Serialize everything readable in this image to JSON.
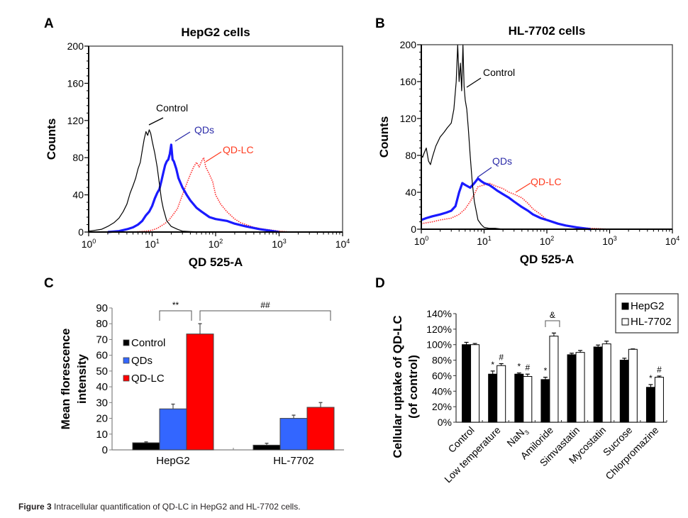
{
  "caption": {
    "label": "Figure 3",
    "text": " Intracellular quantification of QD-LC in HepG2 and HL-7702 cells."
  },
  "colors": {
    "control": "#000000",
    "qds": "#1a1aff",
    "qdlc": "#ff2a2a",
    "bar_control": "#000000",
    "bar_qds": "#3366ff",
    "bar_qdlc": "#ff0000",
    "annot_qds": "#2b2ba8",
    "annot_qdlc": "#ff3b1f"
  },
  "chart_data": [
    {
      "panel": "A",
      "type": "line",
      "title": "HepG2 cells",
      "xlabel": "QD 525-A",
      "ylabel": "Counts",
      "xscale": "log",
      "xlim": [
        1,
        10000
      ],
      "ylim": [
        0,
        200
      ],
      "xticks": [
        1,
        10,
        100,
        1000,
        10000
      ],
      "xtick_labels": [
        {
          "base": "10",
          "exp": "0"
        },
        {
          "base": "10",
          "exp": "1"
        },
        {
          "base": "10",
          "exp": "2"
        },
        {
          "base": "10",
          "exp": "3"
        },
        {
          "base": "10",
          "exp": "4"
        }
      ],
      "yticks": [
        0,
        40,
        80,
        120,
        160,
        200
      ],
      "series": [
        {
          "name": "Control",
          "style": "thin-solid",
          "annotation": "Control",
          "x": [
            1,
            1.3,
            1.6,
            2,
            2.5,
            3,
            3.5,
            4,
            4.5,
            5,
            5.5,
            6,
            6.5,
            7,
            7.5,
            8,
            8.5,
            9,
            9.5,
            10,
            11,
            12,
            13,
            14,
            15,
            17,
            20,
            25,
            30,
            40,
            60,
            100
          ],
          "y": [
            1,
            2,
            3,
            6,
            10,
            15,
            22,
            30,
            42,
            50,
            58,
            68,
            75,
            88,
            100,
            108,
            104,
            110,
            106,
            98,
            85,
            70,
            52,
            35,
            25,
            12,
            6,
            3,
            1,
            0.5,
            0,
            0
          ]
        },
        {
          "name": "QDs",
          "style": "thick-solid",
          "annotation": "QDs",
          "x": [
            2,
            3,
            4,
            5,
            6,
            7,
            8,
            9,
            10,
            11,
            12,
            13,
            14,
            15,
            16,
            17,
            18,
            19,
            20,
            21,
            22,
            24,
            26,
            30,
            35,
            40,
            50,
            60,
            80,
            100,
            150,
            200,
            300,
            500,
            800,
            1000
          ],
          "y": [
            0,
            1,
            3,
            5,
            8,
            12,
            18,
            22,
            28,
            36,
            42,
            46,
            55,
            64,
            72,
            76,
            78,
            84,
            94,
            78,
            76,
            68,
            58,
            48,
            40,
            34,
            26,
            22,
            16,
            14,
            12,
            9,
            6,
            3,
            1,
            0
          ]
        },
        {
          "name": "QD-LC",
          "style": "dotted",
          "annotation": "QD-LC",
          "x": [
            5,
            8,
            10,
            12,
            15,
            18,
            20,
            25,
            30,
            35,
            40,
            45,
            50,
            55,
            60,
            65,
            70,
            80,
            90,
            100,
            120,
            150,
            200,
            250,
            300,
            400,
            600,
            1000,
            1500
          ],
          "y": [
            0,
            1,
            2,
            4,
            8,
            12,
            16,
            25,
            40,
            52,
            62,
            70,
            75,
            70,
            76,
            80,
            70,
            62,
            54,
            40,
            30,
            22,
            14,
            10,
            8,
            5,
            3,
            1,
            0
          ]
        }
      ]
    },
    {
      "panel": "B",
      "type": "line",
      "title": "HL-7702 cells",
      "xlabel": "QD 525-A",
      "ylabel": "Counts",
      "xscale": "log",
      "xlim": [
        1,
        10000
      ],
      "ylim": [
        0,
        200
      ],
      "xticks": [
        1,
        10,
        100,
        1000,
        10000
      ],
      "xtick_labels": [
        {
          "base": "10",
          "exp": "0"
        },
        {
          "base": "10",
          "exp": "1"
        },
        {
          "base": "10",
          "exp": "2"
        },
        {
          "base": "10",
          "exp": "3"
        },
        {
          "base": "10",
          "exp": "4"
        }
      ],
      "yticks": [
        0,
        40,
        80,
        120,
        160,
        200
      ],
      "series": [
        {
          "name": "Control",
          "style": "thin-solid",
          "annotation": "Control",
          "x": [
            1,
            1.05,
            1.1,
            1.2,
            1.3,
            1.4,
            1.5,
            1.7,
            2,
            2.3,
            2.6,
            3,
            3.3,
            3.6,
            3.8,
            4,
            4.2,
            4.4,
            4.6,
            4.8,
            5,
            5.3,
            5.6,
            6,
            6.5,
            7,
            8,
            9,
            10,
            12,
            15,
            20,
            30,
            50,
            100,
            200
          ],
          "y": [
            80,
            78,
            82,
            88,
            74,
            70,
            78,
            90,
            100,
            105,
            110,
            115,
            130,
            160,
            200,
            160,
            180,
            150,
            200,
            155,
            140,
            130,
            110,
            80,
            50,
            30,
            10,
            5,
            2,
            1,
            1,
            0,
            0,
            0,
            0,
            0
          ]
        },
        {
          "name": "QDs",
          "style": "thick-solid",
          "annotation": "QDs",
          "x": [
            1,
            1.2,
            1.5,
            2,
            2.5,
            3,
            3.5,
            4,
            4.5,
            5,
            6,
            7,
            8,
            9,
            10,
            12,
            14,
            16,
            20,
            25,
            30,
            40,
            50,
            60,
            80,
            100,
            150,
            200,
            300,
            500
          ],
          "y": [
            10,
            12,
            14,
            16,
            18,
            20,
            25,
            40,
            50,
            48,
            45,
            50,
            55,
            52,
            50,
            48,
            45,
            42,
            38,
            34,
            30,
            24,
            20,
            16,
            12,
            10,
            6,
            4,
            2,
            0
          ]
        },
        {
          "name": "QD-LC",
          "style": "dotted",
          "annotation": "QD-LC",
          "x": [
            1,
            1.5,
            2,
            3,
            4,
            5,
            6,
            7,
            8,
            10,
            12,
            15,
            20,
            25,
            30,
            40,
            50,
            60,
            80,
            100,
            150,
            200,
            300,
            500,
            1000
          ],
          "y": [
            6,
            8,
            10,
            12,
            16,
            22,
            30,
            38,
            46,
            48,
            50,
            47,
            44,
            40,
            38,
            34,
            28,
            22,
            16,
            10,
            6,
            4,
            2,
            1,
            0
          ]
        }
      ]
    },
    {
      "panel": "C",
      "type": "bar",
      "title": "",
      "xlabel": "",
      "ylabel": "Mean florescence intensity",
      "ylabel_lines": [
        "Mean florescence",
        "intensity"
      ],
      "categories": [
        "HepG2",
        "HL-7702"
      ],
      "ylim": [
        0,
        90
      ],
      "yticks": [
        0,
        10,
        20,
        30,
        40,
        50,
        60,
        70,
        80,
        90
      ],
      "legend_position": "upper-left",
      "series": [
        {
          "name": "Control",
          "values": [
            4.5,
            3.0
          ],
          "errors": [
            0.6,
            1.2
          ]
        },
        {
          "name": "QDs",
          "values": [
            26,
            20
          ],
          "errors": [
            3,
            2
          ]
        },
        {
          "name": "QD-LC",
          "values": [
            73.5,
            27
          ],
          "errors": [
            6.5,
            3
          ]
        }
      ],
      "annotations": [
        {
          "label": "**",
          "from": "HepG2 QDs",
          "to": "HepG2 QD-LC"
        },
        {
          "label": "##",
          "from": "HepG2 QD-LC",
          "to": "HL-7702 QD-LC"
        }
      ]
    },
    {
      "panel": "D",
      "type": "bar",
      "title": "",
      "xlabel": "",
      "ylabel": "Cellular uptake of QD-LC (of control)",
      "ylabel_lines": [
        "Cellular uptake of QD-LC",
        "(of control)"
      ],
      "categories": [
        "Control",
        "Low temperature",
        "NaN3",
        "Amiloride",
        "Simvastatin",
        "Mycostatin",
        "Sucrose",
        "Chlorpromazine"
      ],
      "category_labels": [
        {
          "text": "Control"
        },
        {
          "text": "Low temperature"
        },
        {
          "text": "NaN",
          "sub": "3"
        },
        {
          "text": "Amiloride"
        },
        {
          "text": "Simvastatin"
        },
        {
          "text": "Mycostatin"
        },
        {
          "text": "Sucrose"
        },
        {
          "text": "Chlorpromazine"
        }
      ],
      "ylim": [
        0,
        140
      ],
      "yticks": [
        0,
        20,
        40,
        60,
        80,
        100,
        120,
        140
      ],
      "ytick_labels": [
        "0%",
        "20%",
        "40%",
        "60%",
        "80%",
        "100%",
        "120%",
        "140%"
      ],
      "legend_position": "top-right",
      "series": [
        {
          "name": "HepG2",
          "values": [
            100,
            62,
            62,
            55,
            87,
            97,
            80,
            45
          ],
          "errors": [
            3,
            4,
            1.5,
            3,
            2,
            2.5,
            2.5,
            3.5
          ],
          "marks": [
            "",
            "*",
            "*",
            "*",
            "",
            "",
            "",
            "*"
          ]
        },
        {
          "name": "HL-7702",
          "values": [
            100,
            73,
            59,
            111,
            90,
            101,
            94,
            58
          ],
          "errors": [
            1.5,
            2.5,
            3,
            4,
            2.5,
            3.5,
            0.5,
            1.5
          ],
          "marks": [
            "",
            "#",
            "#",
            "",
            "",
            "",
            "",
            "#"
          ]
        }
      ],
      "annotations": [
        {
          "label": "&",
          "from": "Amiloride HepG2",
          "to": "Amiloride HL-7702"
        }
      ]
    }
  ]
}
